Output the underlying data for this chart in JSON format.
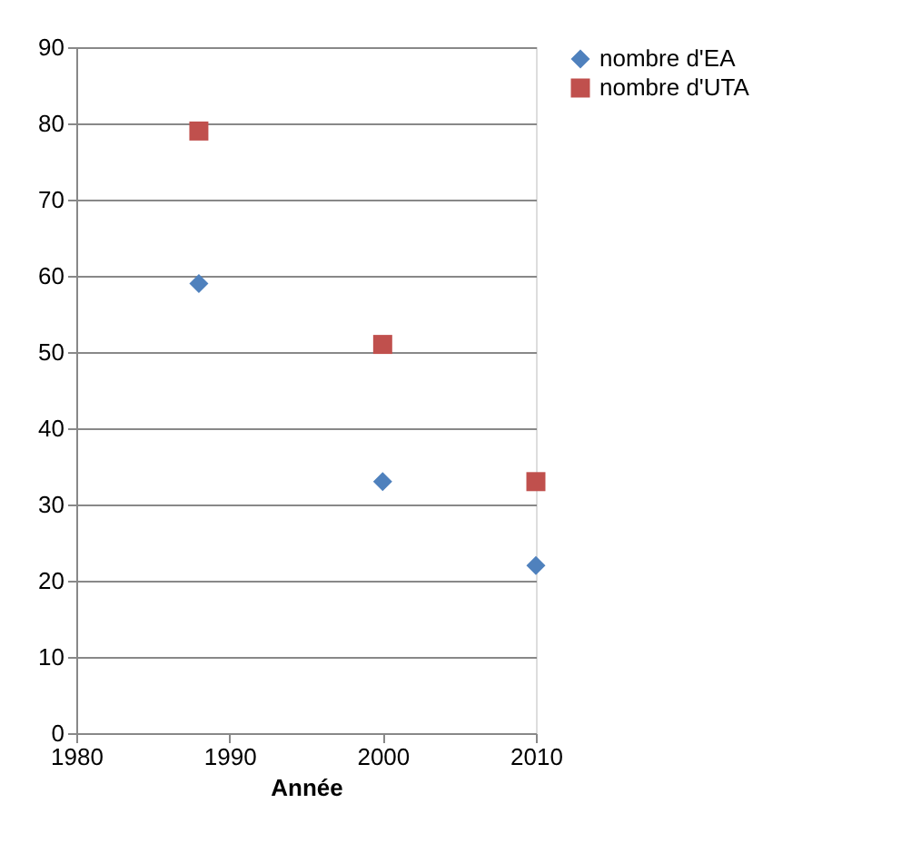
{
  "chart_data": {
    "type": "scatter",
    "xlabel": "Année",
    "x": [
      1988,
      2000,
      2010
    ],
    "series": [
      {
        "name": "nombre d'EA",
        "color": "#4f81bd",
        "marker": "diamond",
        "values": [
          59,
          33,
          22
        ]
      },
      {
        "name": "nombre d'UTA",
        "color": "#c0504d",
        "marker": "square",
        "values": [
          79,
          51,
          33
        ]
      }
    ],
    "xlim": [
      1980,
      2010
    ],
    "xticks": [
      1980,
      1990,
      2000,
      2010
    ],
    "ylim": [
      0,
      90
    ],
    "yticks": [
      0,
      10,
      20,
      30,
      40,
      50,
      60,
      70,
      80,
      90
    ],
    "grid": "y",
    "legend": "right"
  }
}
